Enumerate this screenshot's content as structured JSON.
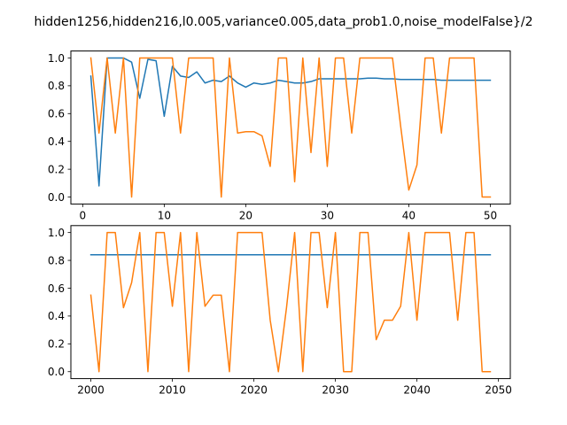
{
  "suptitle": "hidden1256,hidden216,l0.005,variance0.005,data_prob1.0,noise_modelFalse}/2",
  "chart_data": [
    {
      "type": "line",
      "xlim": [
        -1.45,
        52.45
      ],
      "ylim": [
        -0.05,
        1.05
      ],
      "xticks": [
        0,
        10,
        20,
        30,
        40,
        50
      ],
      "yticks": [
        0.0,
        0.2,
        0.4,
        0.6,
        0.8,
        1.0
      ],
      "grid": false,
      "series": [
        {
          "color": "#1f77b4",
          "x": [
            1,
            2,
            3,
            4,
            5,
            6,
            7,
            8,
            9,
            10,
            11,
            12,
            13,
            14,
            15,
            16,
            17,
            18,
            19,
            20,
            21,
            22,
            23,
            24,
            25,
            26,
            27,
            28,
            29,
            30,
            31,
            32,
            33,
            34,
            35,
            36,
            37,
            38,
            39,
            40,
            41,
            42,
            43,
            44,
            45,
            46,
            47,
            48,
            49,
            50
          ],
          "y": [
            0.87,
            0.08,
            1.0,
            1.0,
            1.0,
            0.97,
            0.71,
            0.99,
            0.98,
            0.58,
            0.94,
            0.87,
            0.86,
            0.9,
            0.82,
            0.84,
            0.83,
            0.87,
            0.82,
            0.79,
            0.82,
            0.81,
            0.82,
            0.84,
            0.83,
            0.82,
            0.82,
            0.83,
            0.85,
            0.85,
            0.85,
            0.85,
            0.85,
            0.85,
            0.855,
            0.855,
            0.85,
            0.85,
            0.845,
            0.845,
            0.845,
            0.845,
            0.845,
            0.84,
            0.84,
            0.84,
            0.84,
            0.84,
            0.84,
            0.84
          ]
        },
        {
          "color": "#ff7f0e",
          "x": [
            1,
            2,
            3,
            4,
            5,
            6,
            7,
            8,
            9,
            10,
            11,
            12,
            13,
            14,
            15,
            16,
            17,
            18,
            19,
            20,
            21,
            22,
            23,
            24,
            25,
            26,
            27,
            28,
            29,
            30,
            31,
            32,
            33,
            34,
            35,
            36,
            37,
            38,
            39,
            40,
            41,
            42,
            43,
            44,
            45,
            46,
            47,
            48,
            49,
            50
          ],
          "y": [
            1.0,
            0.46,
            1.0,
            0.46,
            1.0,
            0.0,
            1.0,
            1.0,
            1.0,
            1.0,
            1.0,
            0.46,
            1.0,
            1.0,
            1.0,
            1.0,
            0.0,
            1.0,
            0.46,
            0.47,
            0.47,
            0.44,
            0.22,
            1.0,
            1.0,
            0.11,
            1.0,
            0.32,
            1.0,
            0.22,
            1.0,
            1.0,
            0.46,
            1.0,
            1.0,
            1.0,
            1.0,
            1.0,
            0.51,
            0.05,
            0.23,
            1.0,
            1.0,
            0.46,
            1.0,
            1.0,
            1.0,
            1.0,
            0.0,
            0.0
          ]
        }
      ]
    },
    {
      "type": "line",
      "xlim": [
        1997.55,
        2051.45
      ],
      "ylim": [
        -0.05,
        1.05
      ],
      "xticks": [
        2000,
        2010,
        2020,
        2030,
        2040,
        2050
      ],
      "yticks": [
        0.0,
        0.2,
        0.4,
        0.6,
        0.8,
        1.0
      ],
      "grid": false,
      "series": [
        {
          "color": "#1f77b4",
          "x": [
            2000,
            2049
          ],
          "y": [
            0.84,
            0.84
          ]
        },
        {
          "color": "#ff7f0e",
          "x": [
            2000,
            2001,
            2002,
            2003,
            2004,
            2005,
            2006,
            2007,
            2008,
            2009,
            2010,
            2011,
            2012,
            2013,
            2014,
            2015,
            2016,
            2017,
            2018,
            2019,
            2020,
            2021,
            2022,
            2023,
            2024,
            2025,
            2026,
            2027,
            2028,
            2029,
            2030,
            2031,
            2032,
            2033,
            2034,
            2035,
            2036,
            2037,
            2038,
            2039,
            2040,
            2041,
            2042,
            2043,
            2044,
            2045,
            2046,
            2047,
            2048,
            2049
          ],
          "y": [
            0.55,
            0.0,
            1.0,
            1.0,
            0.46,
            0.64,
            1.0,
            0.0,
            1.0,
            1.0,
            0.47,
            1.0,
            0.0,
            1.0,
            0.47,
            0.55,
            0.55,
            0.0,
            1.0,
            1.0,
            1.0,
            1.0,
            0.37,
            0.0,
            0.46,
            1.0,
            0.0,
            1.0,
            1.0,
            0.46,
            1.0,
            0.0,
            0.0,
            1.0,
            1.0,
            0.23,
            0.37,
            0.37,
            0.47,
            1.0,
            0.37,
            1.0,
            1.0,
            1.0,
            1.0,
            0.37,
            1.0,
            1.0,
            0.0,
            0.0
          ]
        }
      ]
    }
  ]
}
